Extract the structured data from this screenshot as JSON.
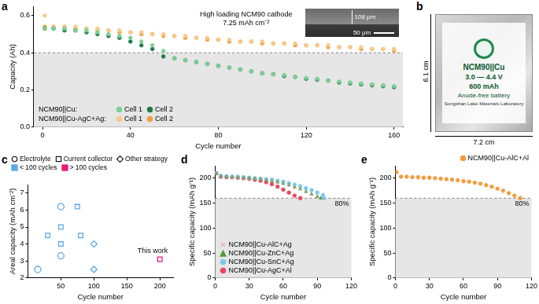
{
  "chart_data": [
    {
      "type": "scatter",
      "title": "a",
      "x_label": "Cycle number",
      "y_label": "Capacity (Ah)",
      "x": [
        1,
        5,
        10,
        15,
        20,
        25,
        30,
        35,
        40,
        45,
        50,
        55,
        60,
        65,
        70,
        75,
        80,
        85,
        90,
        95,
        100,
        105,
        110,
        115,
        120,
        125,
        130,
        135,
        140,
        145,
        150,
        155,
        160
      ],
      "xlim": [
        -4,
        164
      ],
      "xticks": [
        0,
        40,
        80,
        120,
        160
      ],
      "ylim": [
        0,
        0.65
      ],
      "yticks": [
        {
          "value": 0,
          "label": "0.0"
        },
        0.2,
        0.4,
        0.6
      ],
      "threshold": 0.4,
      "grid": false,
      "legend": "lower left",
      "annotations": [
        "High loading NCM90 cathode",
        "7.25 mAh cm⁻²"
      ],
      "inset": {
        "height_label": "108 μm",
        "scale_label": "50 μm"
      },
      "series": [
        {
          "group": "NCM90||Cu:",
          "name": "Cell 1",
          "color": "#7fcf95",
          "marker": "circle",
          "values": [
            0.53,
            0.53,
            0.53,
            0.52,
            0.52,
            0.51,
            0.5,
            0.49,
            0.48,
            0.46,
            0.44,
            0.41,
            0.37,
            0.36,
            0.35,
            0.34,
            0.33,
            0.32,
            0.31,
            0.3,
            0.29,
            0.285,
            0.28,
            0.27,
            0.265,
            0.26,
            0.25,
            0.245,
            0.24,
            0.235,
            0.23,
            0.225,
            0.22
          ]
        },
        {
          "group": "NCM90||Cu:",
          "name": "Cell 2",
          "color": "#1f7a45",
          "marker": "circle",
          "values": [
            0.53,
            0.53,
            0.52,
            0.52,
            0.51,
            0.5,
            0.49,
            0.48,
            0.46,
            0.44,
            0.42,
            0.38,
            0.37,
            0.36,
            0.35,
            0.34,
            0.33,
            0.32,
            0.31,
            0.3,
            0.29,
            0.285,
            0.275,
            0.27,
            0.26,
            0.255,
            0.25,
            0.24,
            0.235,
            0.23,
            0.225,
            0.22,
            0.215
          ]
        },
        {
          "group": "NCM90||Cu-AgC+Ag:",
          "name": "Cell 1",
          "color": "#f7c98a",
          "marker": "circle",
          "values": [
            0.6,
            0.54,
            0.54,
            0.54,
            0.53,
            0.53,
            0.52,
            0.52,
            0.51,
            0.51,
            0.5,
            0.5,
            0.49,
            0.49,
            0.48,
            0.48,
            0.47,
            0.47,
            0.46,
            0.46,
            0.46,
            0.45,
            0.45,
            0.45,
            0.44,
            0.44,
            0.44,
            0.43,
            0.43,
            0.43,
            0.42,
            0.42,
            0.42
          ]
        },
        {
          "group": "NCM90||Cu-AgC+Ag:",
          "name": "Cell 2",
          "color": "#f0a040",
          "marker": "circle",
          "values": [
            0.54,
            0.54,
            0.54,
            0.53,
            0.53,
            0.52,
            0.52,
            0.51,
            0.51,
            0.5,
            0.5,
            0.49,
            0.49,
            0.48,
            0.48,
            0.47,
            0.47,
            0.46,
            0.46,
            0.46,
            0.45,
            0.45,
            0.45,
            0.44,
            0.44,
            0.44,
            0.43,
            0.43,
            0.43,
            0.42,
            0.42,
            0.42,
            0.41
          ]
        }
      ]
    },
    {
      "type": "scatter",
      "title": "c",
      "x_label": "Cycle number",
      "y_label": "Areal capacity (mAh cm⁻²)",
      "xlim": [
        0,
        220
      ],
      "xticks": [
        50,
        100,
        150,
        200
      ],
      "ylim": [
        2,
        7.5
      ],
      "yticks": [
        2,
        3,
        4,
        5,
        6,
        7
      ],
      "grid": false,
      "legend": "top",
      "color_legend": [
        {
          "label": "< 100 cycles",
          "color": "#5aa9e6"
        },
        {
          "label": "> 100 cycles",
          "color": "#e6197a"
        }
      ],
      "annotations": [
        {
          "text": "This work",
          "x": 200,
          "y": 3.1
        }
      ],
      "series": [
        {
          "name": "Electrolyte",
          "marker": "circle",
          "x": [
            15,
            50,
            50
          ],
          "values": [
            2.5,
            3.3,
            6.2
          ],
          "colors": [
            "#5aa9e6",
            "#5aa9e6",
            "#5aa9e6"
          ]
        },
        {
          "name": "Current collector",
          "marker": "rect",
          "x": [
            30,
            50,
            50,
            75,
            80,
            200
          ],
          "values": [
            4.5,
            5.0,
            4.0,
            6.2,
            4.5,
            3.1
          ],
          "colors": [
            "#5aa9e6",
            "#5aa9e6",
            "#5aa9e6",
            "#5aa9e6",
            "#5aa9e6",
            "#e6197a"
          ]
        },
        {
          "name": "Other strategy",
          "marker": "rectRot",
          "x": [
            100,
            100
          ],
          "values": [
            4.0,
            2.5
          ],
          "colors": [
            "#5aa9e6",
            "#5aa9e6"
          ]
        }
      ]
    },
    {
      "type": "scatter",
      "title": "d",
      "x_label": "Cycle number",
      "y_label": "Specific capacity (mAh g⁻¹)",
      "xlim": [
        0,
        120
      ],
      "xticks": [
        0,
        30,
        60,
        90,
        120
      ],
      "ylim": [
        0,
        225
      ],
      "yticks": [
        0,
        50,
        100,
        150,
        200
      ],
      "threshold": 160,
      "threshold_label": "80%",
      "grid": false,
      "legend": "lower left",
      "series": [
        {
          "name": "NCM90||Cu-AlC+Ag",
          "color": "#f2a2c0",
          "marker": "crossRot",
          "x": [
            1,
            5,
            10,
            15,
            20,
            25,
            30,
            35,
            40,
            45,
            50,
            55,
            60,
            65,
            70,
            75,
            80,
            85,
            90
          ],
          "values": [
            210,
            204,
            203,
            202,
            202,
            201,
            200,
            199,
            198,
            197,
            195,
            193,
            190,
            187,
            183,
            178,
            173,
            167,
            161
          ]
        },
        {
          "name": "NCM90||Cu-ZnC+Ag",
          "color": "#4f9a3a",
          "marker": "triangle",
          "x": [
            1,
            5,
            10,
            15,
            20,
            25,
            30,
            35,
            40,
            45,
            50,
            55,
            60,
            65,
            70,
            75,
            80,
            85,
            90,
            93
          ],
          "values": [
            209,
            204,
            203,
            202,
            202,
            201,
            200,
            199,
            198,
            196,
            194,
            192,
            189,
            186,
            182,
            178,
            173,
            168,
            163,
            160
          ]
        },
        {
          "name": "NCM90||Cu-SnC+Ag",
          "color": "#7ec8e8",
          "marker": "circle",
          "x": [
            1,
            5,
            10,
            15,
            20,
            25,
            30,
            35,
            40,
            45,
            50,
            55,
            60,
            65,
            70,
            75,
            80,
            85,
            90,
            95,
            96
          ],
          "values": [
            211,
            205,
            204,
            203,
            203,
            202,
            201,
            200,
            199,
            198,
            197,
            195,
            193,
            190,
            187,
            184,
            180,
            176,
            171,
            166,
            160
          ]
        },
        {
          "name": "NCM90||Cu-AgC+Al",
          "color": "#e8475f",
          "marker": "circle",
          "x": [
            1,
            5,
            10,
            15,
            20,
            25,
            30,
            35,
            40,
            45,
            50,
            55,
            60,
            65,
            70,
            75
          ],
          "values": [
            210,
            203,
            202,
            202,
            201,
            200,
            199,
            197,
            195,
            192,
            188,
            183,
            177,
            171,
            165,
            160
          ]
        }
      ]
    },
    {
      "type": "scatter",
      "title": "e",
      "x_label": "Cycle number",
      "y_label": "Specific capacity (mAh g⁻¹)",
      "xlim": [
        0,
        120
      ],
      "xticks": [
        0,
        30,
        60,
        90,
        120
      ],
      "ylim": [
        0,
        225
      ],
      "yticks": [
        0,
        50,
        100,
        150,
        200
      ],
      "threshold": 160,
      "threshold_label": "80%",
      "grid": false,
      "legend": "upper right",
      "series": [
        {
          "name": "NCM90||Cu-AlC+Al",
          "color": "#f39c3c",
          "marker": "circle",
          "x": [
            1,
            5,
            10,
            15,
            20,
            25,
            30,
            35,
            40,
            45,
            50,
            55,
            60,
            65,
            70,
            75,
            80,
            85,
            90,
            95,
            100,
            105,
            110
          ],
          "values": [
            212,
            203,
            203,
            202,
            202,
            201,
            201,
            200,
            199,
            198,
            197,
            196,
            194,
            193,
            191,
            189,
            186,
            183,
            179,
            175,
            170,
            165,
            160
          ]
        }
      ]
    }
  ],
  "photo": {
    "title": "b",
    "label_lines": [
      "NCM90||Cu",
      "3.0 — 4.4 V",
      "600 mAh",
      "Anode-free battery",
      "Songshan Lake Materials Laboratory"
    ],
    "height_label": "6.1 cm",
    "width_label": "7.2 cm"
  }
}
